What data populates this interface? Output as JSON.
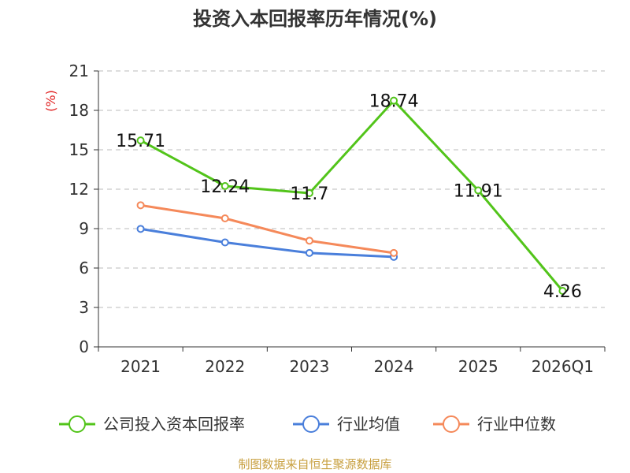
{
  "chart_data": {
    "type": "line",
    "title": "投资入本回报率历年情况(%)",
    "ylabel": "(%)",
    "categories": [
      "2021",
      "2022",
      "2023",
      "2024",
      "2025",
      "2026Q1"
    ],
    "ylim": [
      0,
      21
    ],
    "yticks": [
      0,
      3,
      6,
      9,
      12,
      15,
      18,
      21
    ],
    "grid": true,
    "legend_position": "bottom",
    "series": [
      {
        "name": "公司投入资本回报率",
        "color": "#52c41a",
        "values": [
          15.71,
          12.24,
          11.7,
          18.74,
          11.91,
          4.26
        ],
        "labels": [
          "15.71",
          "12.24",
          "11.7",
          "18.74",
          "11.91",
          "4.26"
        ]
      },
      {
        "name": "行业均值",
        "color": "#4a7fdb",
        "values": [
          8.98,
          7.95,
          7.15,
          6.85,
          null,
          null
        ]
      },
      {
        "name": "行业中位数",
        "color": "#f5895a",
        "values": [
          10.78,
          9.78,
          8.08,
          7.15,
          null,
          null
        ]
      }
    ],
    "source": "制图数据来自恒生聚源数据库"
  },
  "colors": {
    "axis": "#333333",
    "grid": "#bbbbbb",
    "unit": "#e02020",
    "source": "#c8a040"
  }
}
